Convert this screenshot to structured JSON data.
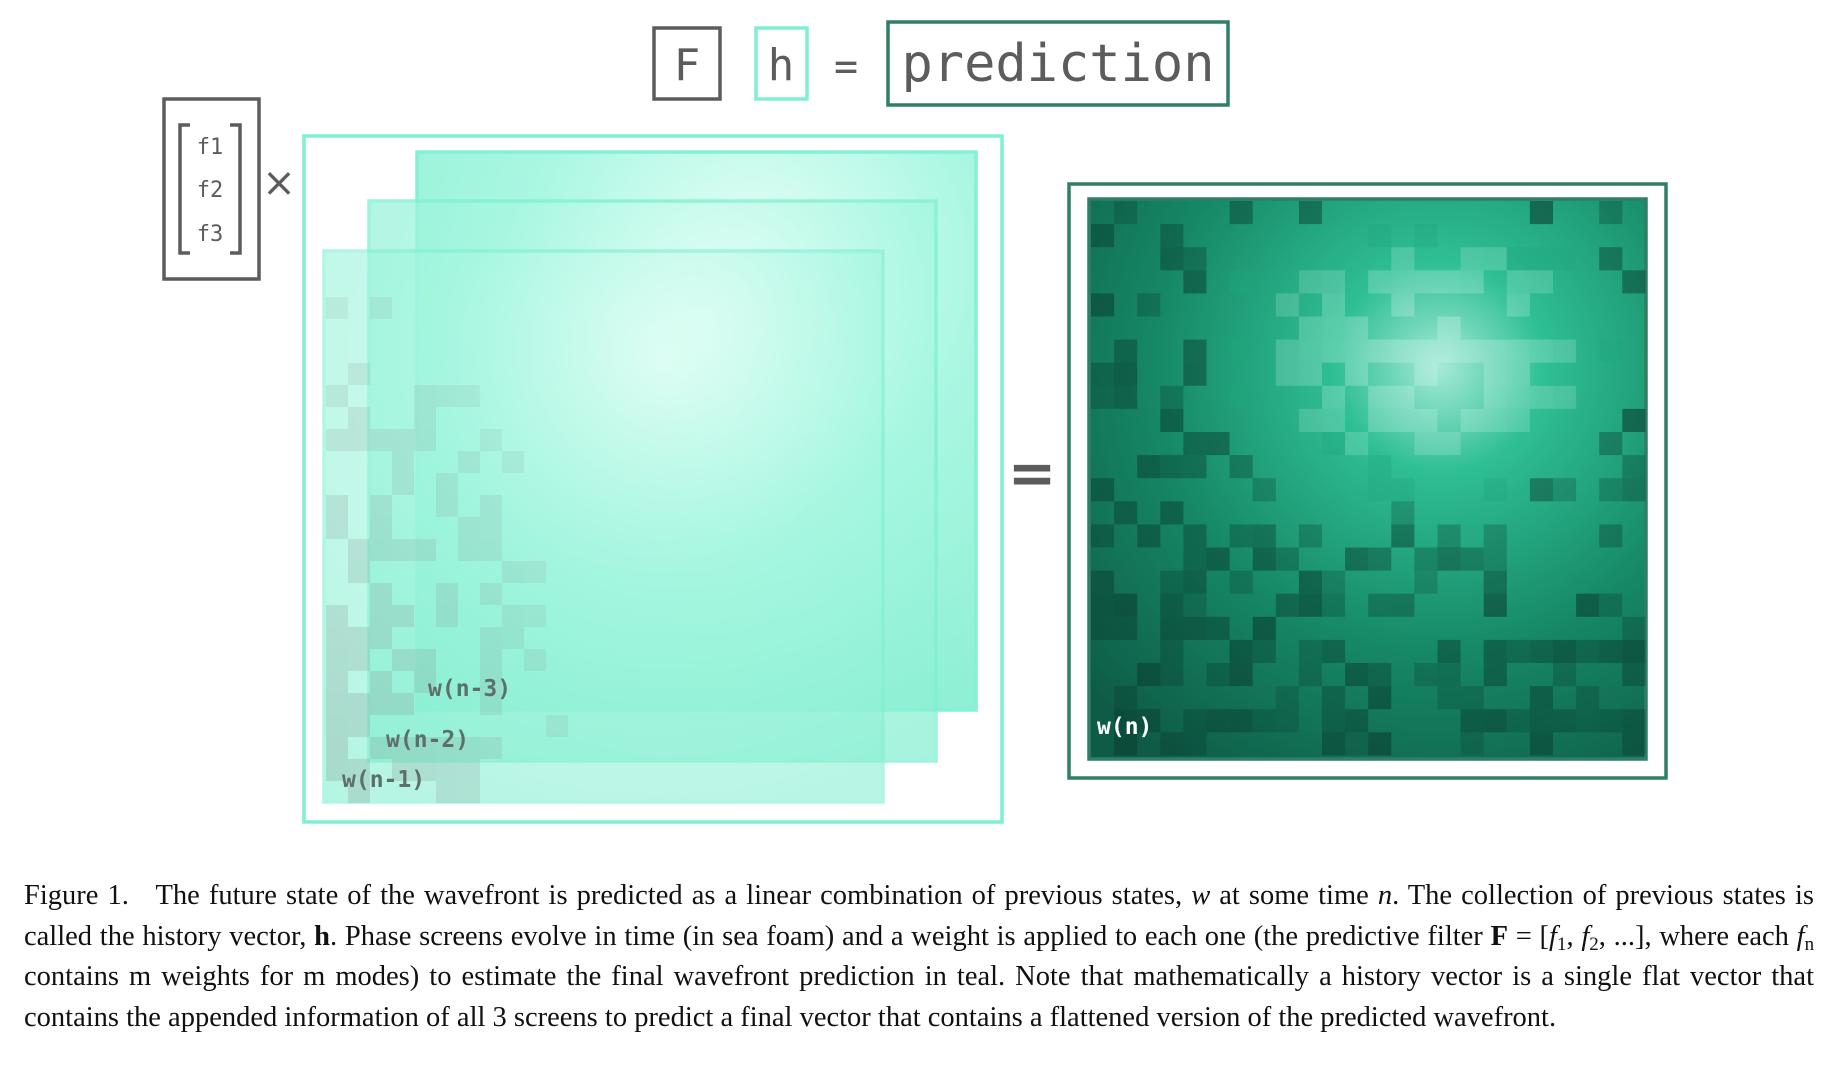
{
  "equation": {
    "F": "F",
    "h": "h",
    "equals": "=",
    "prediction": "prediction"
  },
  "filter_vector": {
    "items": [
      "f1",
      "f2",
      "f3"
    ],
    "times": "×"
  },
  "frames": {
    "labels": [
      "w(n-3)",
      "w(n-2)",
      "w(n-1)"
    ],
    "color": "#7ef0d2"
  },
  "output": {
    "equals": "=",
    "label": "w(n)",
    "color": "#1a8a6e"
  },
  "caption": {
    "figure": "Figure 1.",
    "s1": "The future state of the wavefront is predicted as a linear combination of previous states,",
    "w": "w",
    "s2": "at some time",
    "n": "n",
    "s3": "The collection of previous states is called the history vector,",
    "hbold": "h",
    "s4": ". Phase screens evolve in time (in sea foam) and a weight is applied to each one (the predictive filter",
    "Fbold": "F",
    "s5": "= [",
    "f": "f",
    "sub1": "1",
    "sub2": "2",
    "s6": ", ...], where each",
    "subn": "n",
    "s7": "contains m weights for m modes) to estimate the final wavefront prediction in teal. Note that mathematically a history vector is a single flat vector that contains the appended information of all 3 screens to predict a final vector that contains a flattened version of the predicted wavefront."
  },
  "colors": {
    "seafoam": "#7ef0d2",
    "teal": "#2f7e66",
    "gray": "#555555"
  }
}
